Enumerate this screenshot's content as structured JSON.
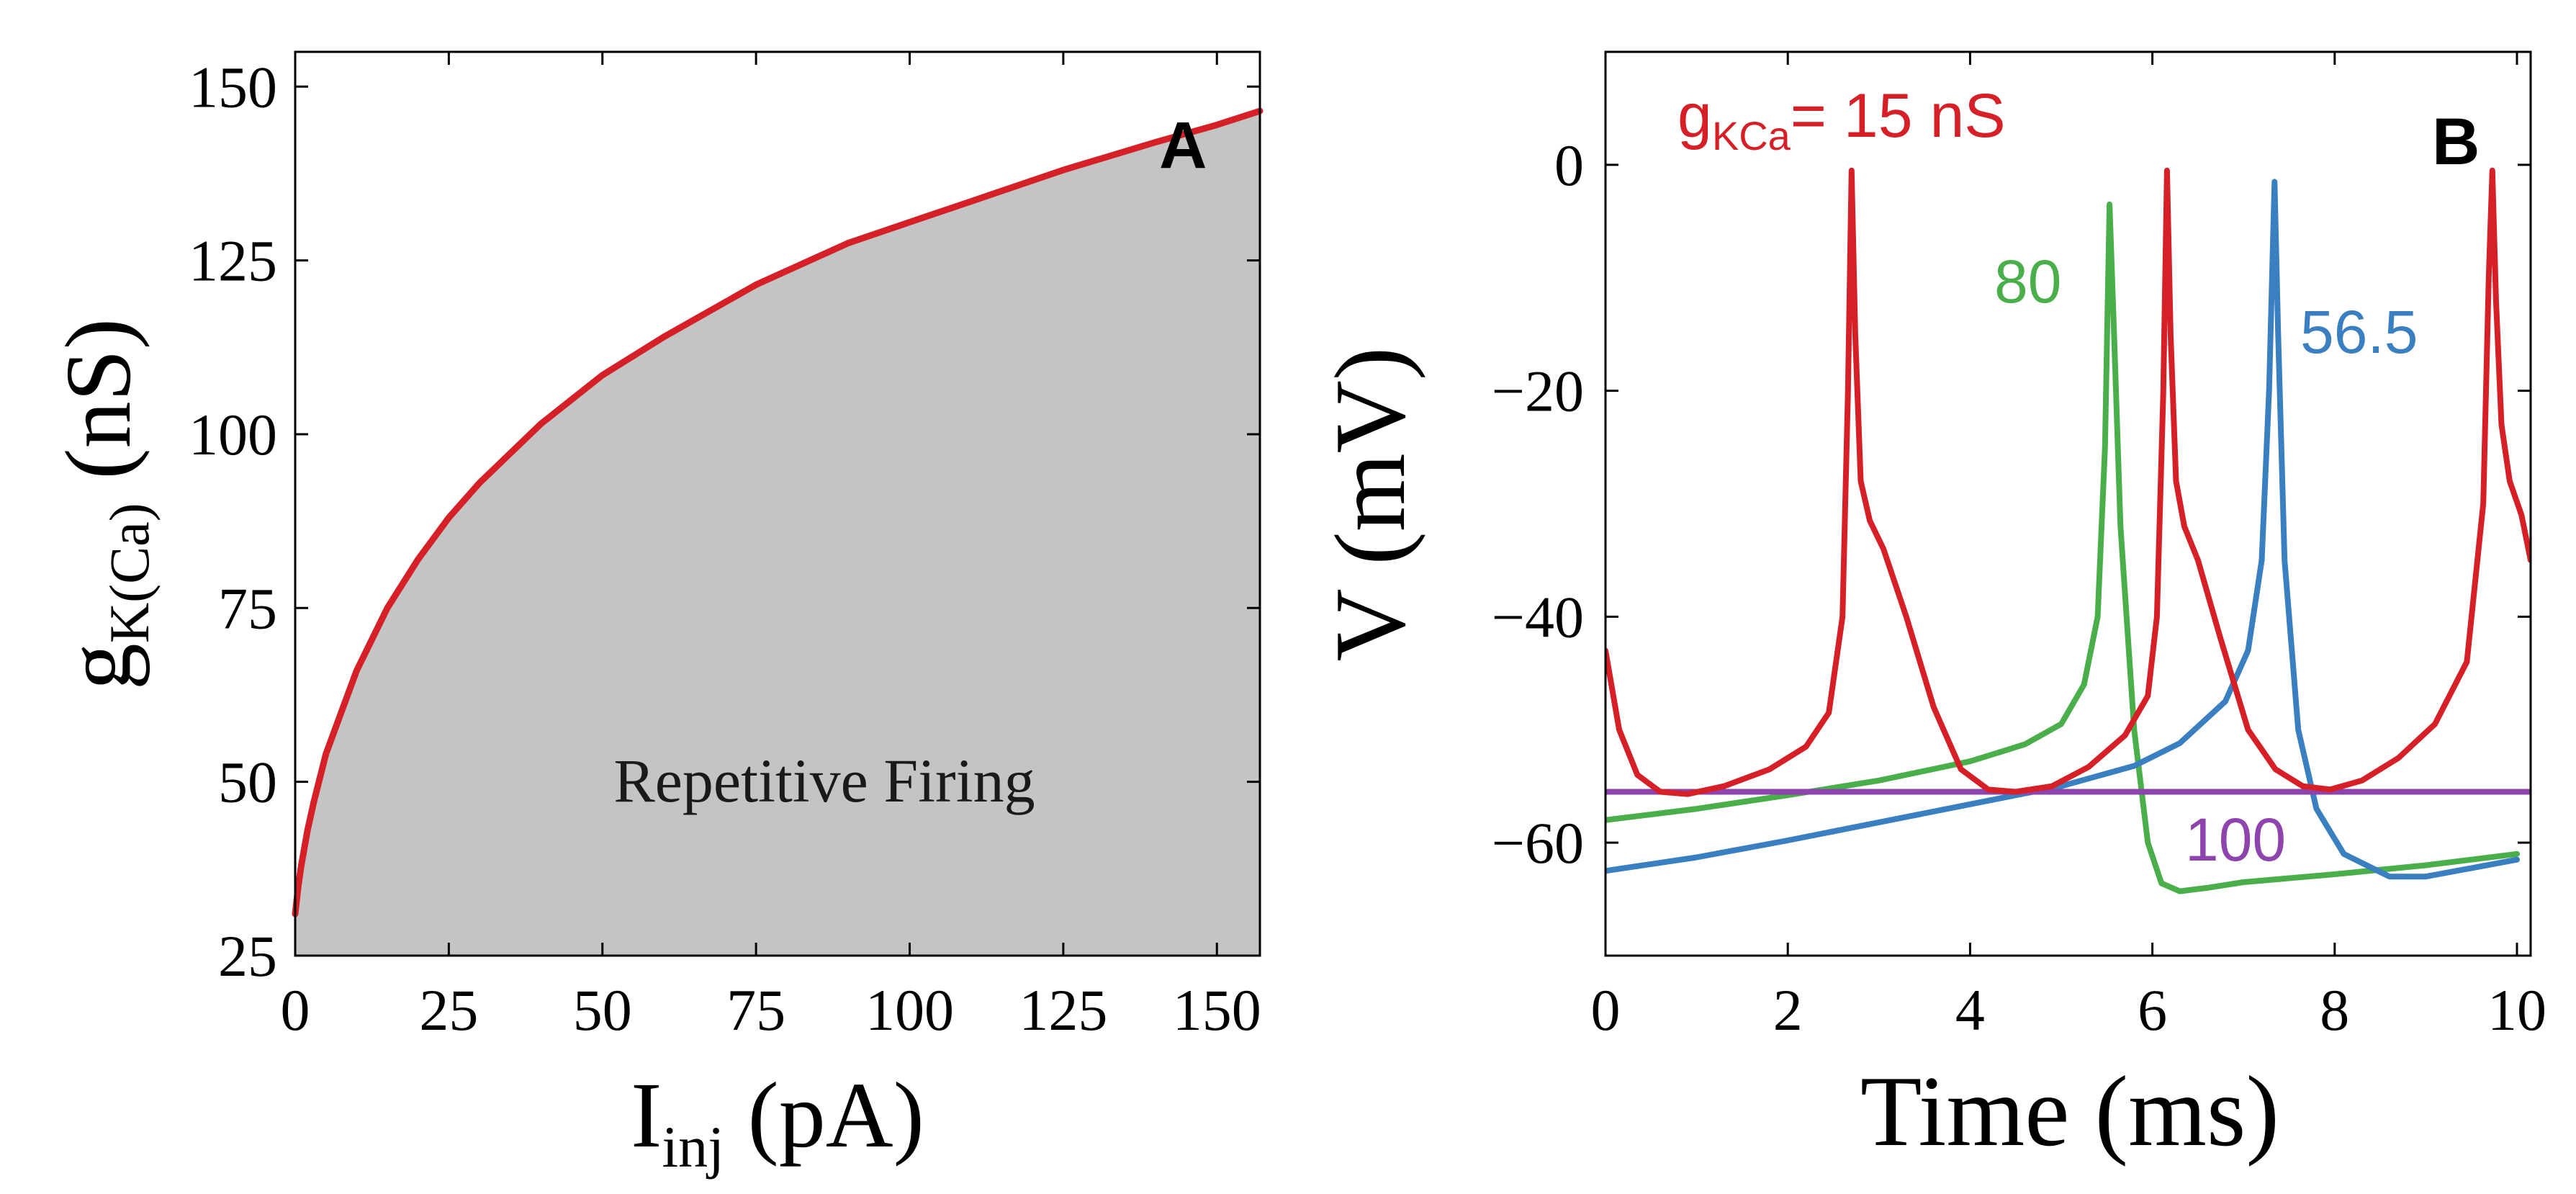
{
  "colors": {
    "red": "#d62027",
    "green": "#4aae4a",
    "blue": "#3a7fc0",
    "purple": "#8e44ad",
    "fill": "#c4c4c4",
    "axis": "#000000"
  },
  "chart_data": [
    {
      "id": "A",
      "type": "area",
      "panel_label": "A",
      "title": "",
      "xlabel_main": "I",
      "xlabel_sub": "inj",
      "xlabel_rest": " (pA)",
      "ylabel_main": "g",
      "ylabel_sub": "K(Ca)",
      "ylabel_rest": " (nS)",
      "xlim": [
        0,
        157
      ],
      "ylim": [
        25,
        155
      ],
      "xticks": [
        0,
        25,
        50,
        75,
        100,
        125,
        150
      ],
      "yticks": [
        25,
        50,
        75,
        100,
        125,
        150
      ],
      "region_label": "Repetitive Firing",
      "series": [
        {
          "name": "boundary",
          "color": "red",
          "x": [
            0,
            0.5,
            1,
            2,
            3,
            5,
            7.5,
            10,
            15,
            20,
            25,
            30,
            40,
            50,
            60,
            75,
            90,
            100,
            110,
            125,
            140,
            150,
            157
          ],
          "y": [
            31,
            35,
            38,
            43,
            47,
            54,
            60,
            66,
            75,
            82,
            88,
            93,
            101.5,
            108.5,
            114,
            121.5,
            127.5,
            130.5,
            133.5,
            138,
            142,
            144.5,
            146.5
          ]
        }
      ]
    },
    {
      "id": "B",
      "type": "line",
      "panel_label": "B",
      "title": "",
      "xlabel": "Time (ms)",
      "ylabel": "V (mV)",
      "xlim": [
        0,
        10.15
      ],
      "ylim": [
        -70,
        10
      ],
      "xticks": [
        0,
        2,
        4,
        6,
        8,
        10
      ],
      "yticks": [
        0,
        -20,
        -40,
        -60
      ],
      "annotation_prefix": "g",
      "annotation_sub": "KCa",
      "annotation_rest": "= 15 nS",
      "series": [
        {
          "name": "80",
          "color": "green",
          "x": [
            0,
            1,
            2,
            3,
            4,
            4.6,
            5,
            5.25,
            5.4,
            5.48,
            5.53,
            5.58,
            5.65,
            5.8,
            5.95,
            6.1,
            6.3,
            6.6,
            7,
            8,
            9,
            10
          ],
          "y": [
            -58,
            -57,
            -55.8,
            -54.5,
            -52.8,
            -51.3,
            -49.5,
            -46,
            -40,
            -25,
            -3.5,
            -15,
            -32,
            -50,
            -60,
            -63.6,
            -64.3,
            -64,
            -63.5,
            -62.8,
            -62,
            -61
          ]
        },
        {
          "name": "56.5",
          "color": "blue",
          "x": [
            0,
            1,
            2,
            3,
            4,
            5,
            5.8,
            6.3,
            6.8,
            7.05,
            7.2,
            7.28,
            7.34,
            7.38,
            7.45,
            7.6,
            7.8,
            8.1,
            8.6,
            9,
            10
          ],
          "y": [
            -62.5,
            -61.3,
            -59.8,
            -58.2,
            -56.6,
            -55,
            -53.2,
            -51.2,
            -47.5,
            -43,
            -35,
            -20,
            -1.5,
            -15,
            -35,
            -50,
            -57,
            -61,
            -63,
            -63,
            -61.5
          ]
        },
        {
          "name": "100",
          "color": "purple",
          "x": [
            0,
            10.15
          ],
          "y": [
            -55.5,
            -55.5
          ]
        },
        {
          "name": "15",
          "color": "red",
          "x": [
            0,
            0.15,
            0.35,
            0.6,
            0.9,
            1.3,
            1.8,
            2.2,
            2.45,
            2.6,
            2.66,
            2.7,
            2.74,
            2.8,
            2.9,
            3.05,
            3.3,
            3.6,
            3.9,
            4.2,
            4.5,
            4.9,
            5.3,
            5.7,
            5.95,
            6.05,
            6.12,
            6.16,
            6.2,
            6.26,
            6.35,
            6.5,
            6.75,
            7.05,
            7.35,
            7.65,
            7.95,
            8.3,
            8.7,
            9.1,
            9.45,
            9.63,
            9.69,
            9.73,
            9.77,
            9.83,
            9.92,
            10.05,
            10.15
          ],
          "y": [
            -43,
            -50,
            -54,
            -55.5,
            -55.7,
            -55,
            -53.5,
            -51.5,
            -48.5,
            -40,
            -20,
            -0.5,
            -15,
            -28,
            -31.5,
            -34,
            -40,
            -48,
            -53.5,
            -55.3,
            -55.5,
            -55,
            -53.3,
            -50.5,
            -47,
            -40,
            -20,
            -0.5,
            -15,
            -28,
            -32,
            -35,
            -42,
            -50,
            -53.5,
            -55,
            -55.3,
            -54.5,
            -52.5,
            -49.5,
            -44,
            -30,
            -10,
            -0.5,
            -12,
            -23,
            -28,
            -31,
            -35
          ]
        }
      ],
      "curve_labels": [
        {
          "text": "80",
          "color": "green"
        },
        {
          "text": "56.5",
          "color": "blue"
        },
        {
          "text": "100",
          "color": "purple"
        }
      ]
    }
  ]
}
